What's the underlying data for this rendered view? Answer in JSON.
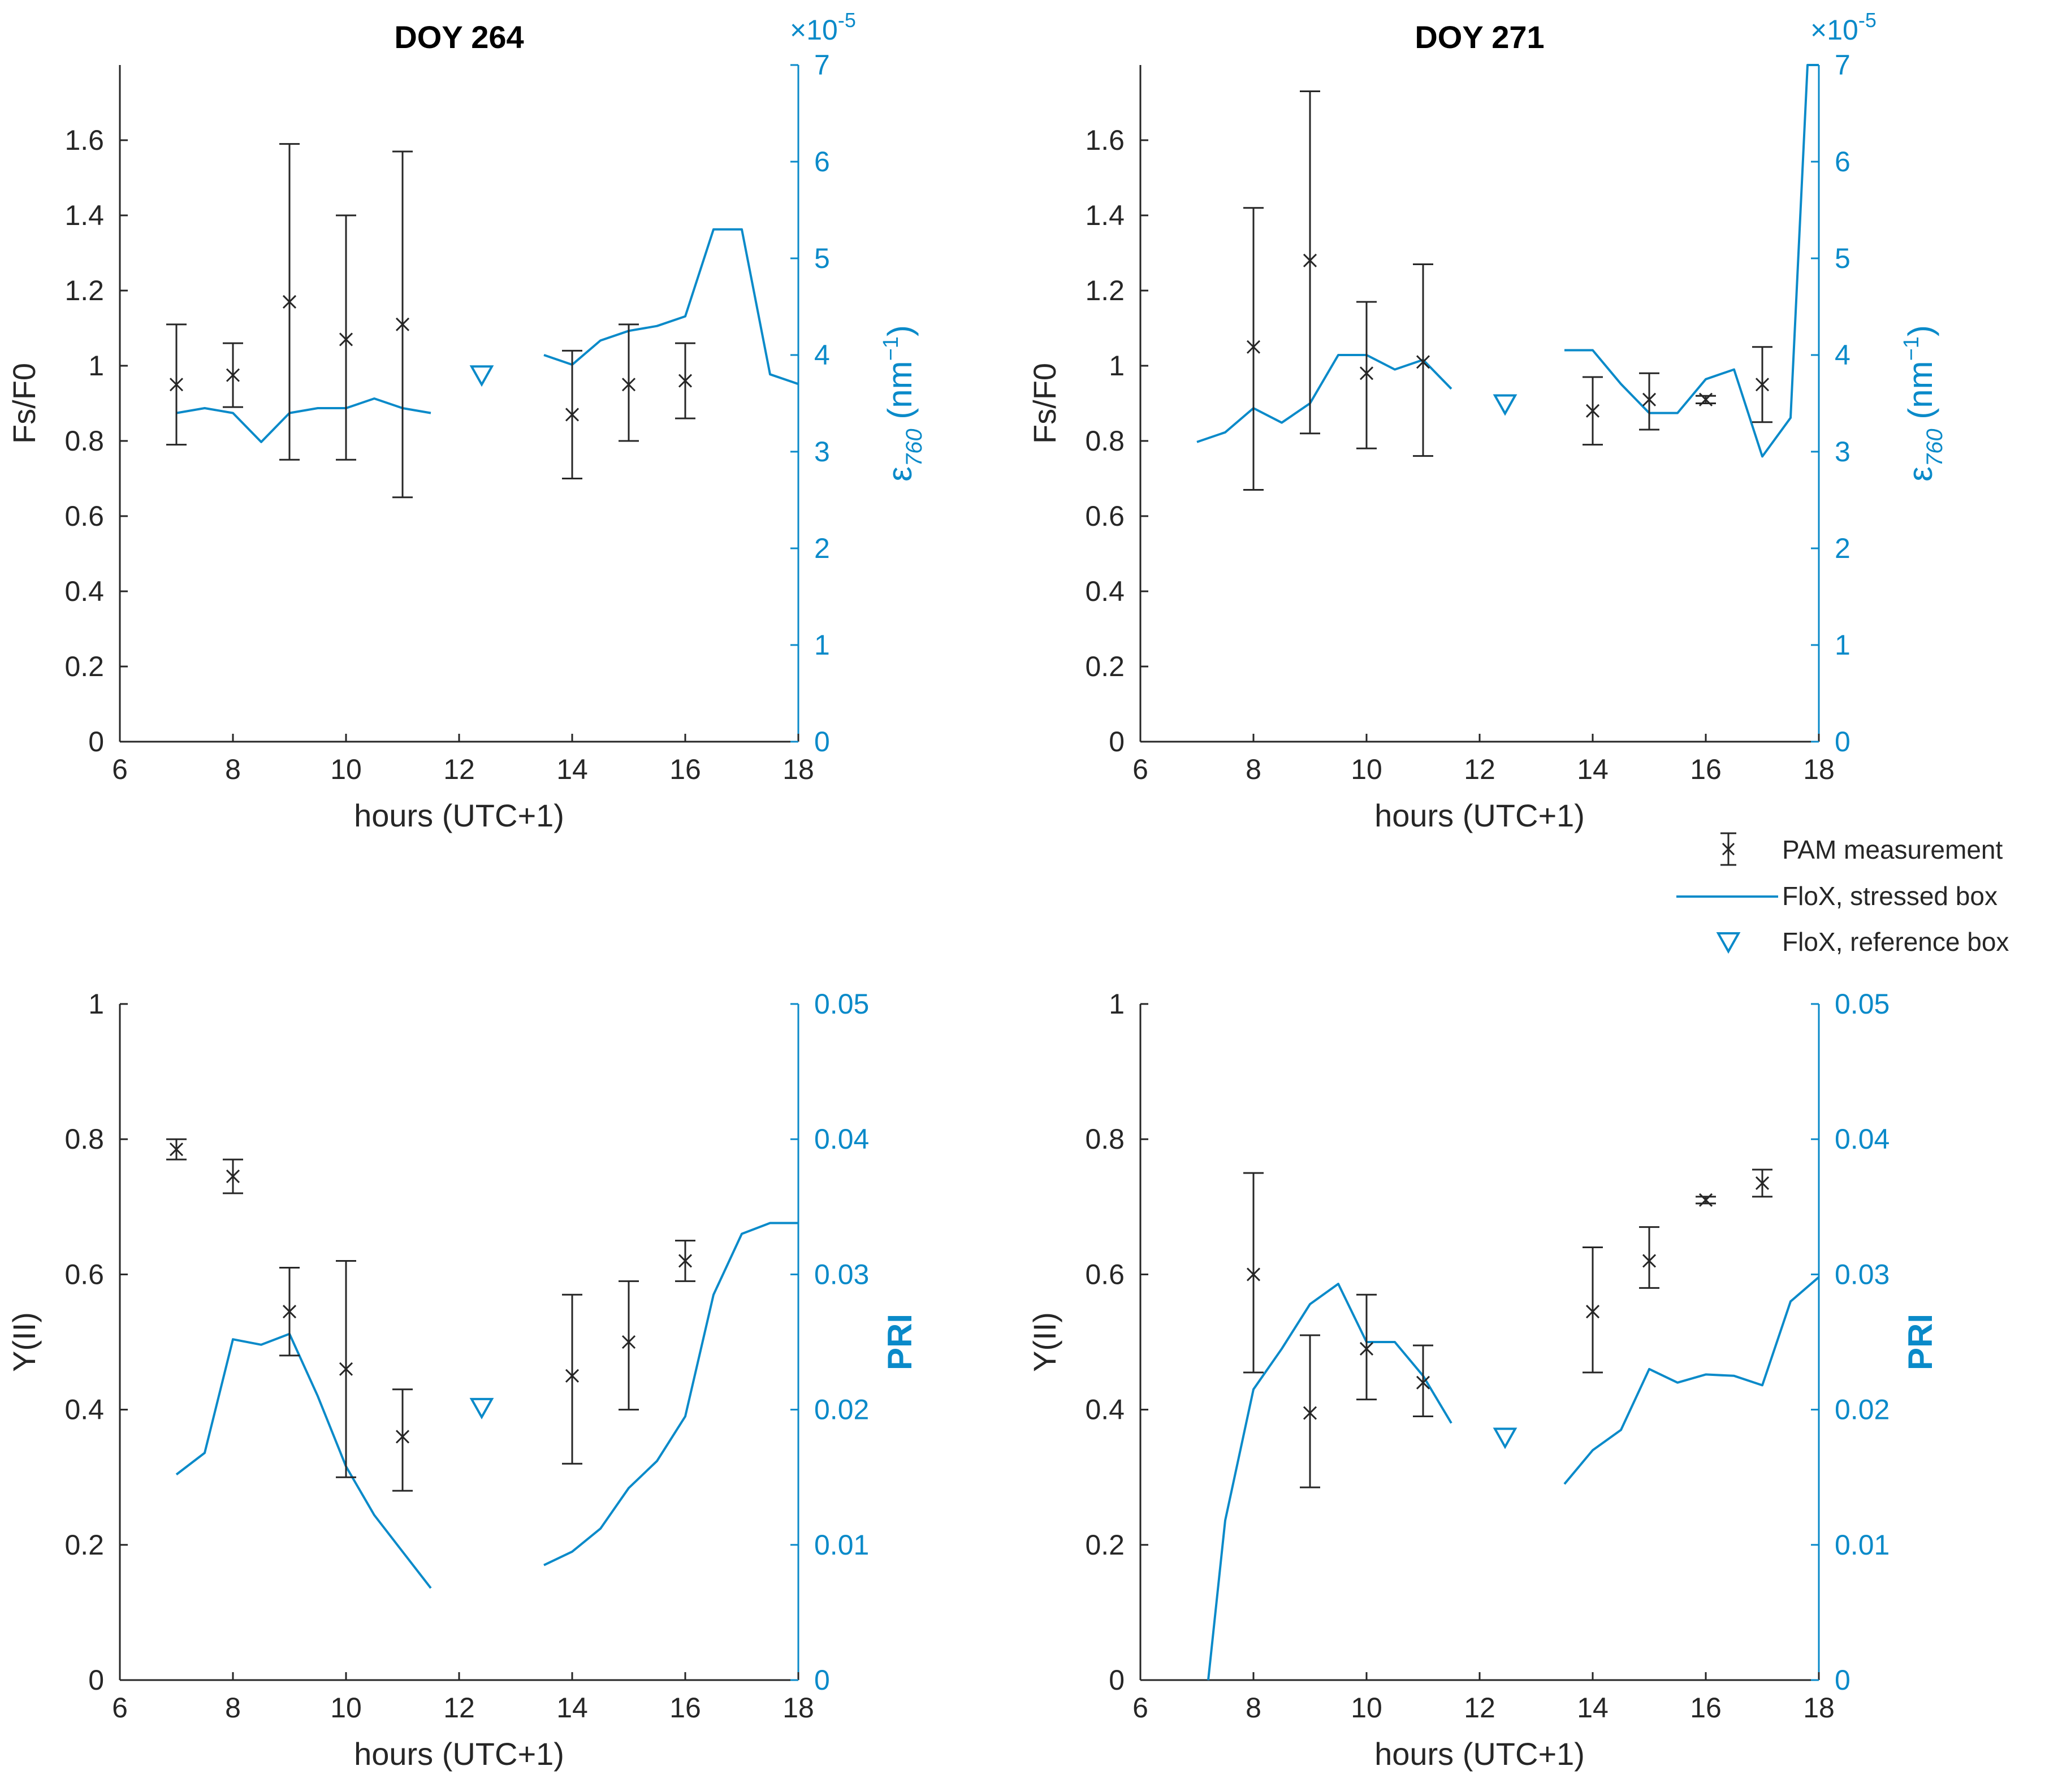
{
  "colors": {
    "black": "#262626",
    "blue": "#0a8ac9"
  },
  "legend": {
    "pam": "PAM measurement",
    "stressed": "FloX, stressed box",
    "reference": "FloX, reference box"
  },
  "chart_data": [
    {
      "type": "line",
      "title": "DOY 264",
      "xlabel": "hours (UTC+1)",
      "ylabel": "Fs/F0",
      "y2label_base": "ε",
      "y2label_sub": "760",
      "y2label_unit": "(nm",
      "y2label_sup": "−1",
      "y2label_close": ")",
      "xlim": [
        6,
        18
      ],
      "xticks": [
        6,
        8,
        10,
        12,
        14,
        16,
        18
      ],
      "ylim": [
        0,
        1.8
      ],
      "yticks": [
        0,
        0.2,
        0.4,
        0.6,
        0.8,
        1,
        1.2,
        1.4,
        1.6
      ],
      "y2lim": [
        0,
        7
      ],
      "y2ticks": [
        0,
        1,
        2,
        3,
        4,
        5,
        6,
        7
      ],
      "y2exp_base": "×10",
      "y2exp_pow": "-5",
      "pam": [
        {
          "x": 7,
          "y": 0.95,
          "lo": 0.79,
          "hi": 1.11
        },
        {
          "x": 8,
          "y": 0.975,
          "lo": 0.89,
          "hi": 1.06
        },
        {
          "x": 9,
          "y": 1.17,
          "lo": 0.75,
          "hi": 1.59
        },
        {
          "x": 10,
          "y": 1.07,
          "lo": 0.75,
          "hi": 1.4
        },
        {
          "x": 11,
          "y": 1.11,
          "lo": 0.65,
          "hi": 1.57
        },
        {
          "x": 14,
          "y": 0.87,
          "lo": 0.7,
          "hi": 1.04
        },
        {
          "x": 15,
          "y": 0.95,
          "lo": 0.8,
          "hi": 1.11
        },
        {
          "x": 16,
          "y": 0.96,
          "lo": 0.86,
          "hi": 1.06
        }
      ],
      "flox_segments": [
        [
          [
            7,
            3.4
          ],
          [
            7.5,
            3.45
          ],
          [
            8,
            3.4
          ],
          [
            8.5,
            3.1
          ],
          [
            9,
            3.4
          ],
          [
            9.5,
            3.45
          ],
          [
            10,
            3.45
          ],
          [
            10.5,
            3.55
          ],
          [
            11,
            3.45
          ],
          [
            11.5,
            3.4
          ]
        ],
        [
          [
            13.5,
            4.0
          ],
          [
            14,
            3.9
          ],
          [
            14.5,
            4.15
          ],
          [
            15,
            4.25
          ],
          [
            15.5,
            4.3
          ],
          [
            16,
            4.4
          ],
          [
            16.5,
            5.3
          ],
          [
            17,
            5.3
          ],
          [
            17.5,
            3.8
          ],
          [
            18,
            3.7
          ]
        ]
      ],
      "reference": {
        "x": 12.4,
        "y": 3.8
      }
    },
    {
      "type": "line",
      "title": "DOY 271",
      "xlabel": "hours (UTC+1)",
      "ylabel": "Fs/F0",
      "y2label_base": "ε",
      "y2label_sub": "760",
      "y2label_unit": "(nm",
      "y2label_sup": "−1",
      "y2label_close": ")",
      "xlim": [
        6,
        18
      ],
      "xticks": [
        6,
        8,
        10,
        12,
        14,
        16,
        18
      ],
      "ylim": [
        0,
        1.8
      ],
      "yticks": [
        0,
        0.2,
        0.4,
        0.6,
        0.8,
        1,
        1.2,
        1.4,
        1.6
      ],
      "y2lim": [
        0,
        7
      ],
      "y2ticks": [
        0,
        1,
        2,
        3,
        4,
        5,
        6,
        7
      ],
      "y2exp_base": "×10",
      "y2exp_pow": "-5",
      "pam": [
        {
          "x": 8,
          "y": 1.05,
          "lo": 0.67,
          "hi": 1.42
        },
        {
          "x": 9,
          "y": 1.28,
          "lo": 0.82,
          "hi": 1.73
        },
        {
          "x": 10,
          "y": 0.98,
          "lo": 0.78,
          "hi": 1.17
        },
        {
          "x": 11,
          "y": 1.01,
          "lo": 0.76,
          "hi": 1.27
        },
        {
          "x": 14,
          "y": 0.88,
          "lo": 0.79,
          "hi": 0.97
        },
        {
          "x": 15,
          "y": 0.91,
          "lo": 0.83,
          "hi": 0.98
        },
        {
          "x": 16,
          "y": 0.91,
          "lo": 0.9,
          "hi": 0.92
        },
        {
          "x": 17,
          "y": 0.95,
          "lo": 0.85,
          "hi": 1.05
        }
      ],
      "flox_segments": [
        [
          [
            7,
            3.1
          ],
          [
            7.5,
            3.2
          ],
          [
            8,
            3.45
          ],
          [
            8.5,
            3.3
          ],
          [
            9,
            3.5
          ],
          [
            9.5,
            4.0
          ],
          [
            10,
            4.0
          ],
          [
            10.5,
            3.85
          ],
          [
            11,
            3.95
          ],
          [
            11.5,
            3.65
          ]
        ],
        [
          [
            13.5,
            4.05
          ],
          [
            14,
            4.05
          ],
          [
            14.5,
            3.7
          ],
          [
            15,
            3.4
          ],
          [
            15.5,
            3.4
          ],
          [
            16,
            3.75
          ],
          [
            16.5,
            3.85
          ],
          [
            17,
            2.95
          ],
          [
            17.5,
            3.35
          ],
          [
            17.8,
            7.0
          ],
          [
            18,
            7.0
          ]
        ]
      ],
      "reference": {
        "x": 12.45,
        "y": 3.5
      }
    },
    {
      "type": "line",
      "title": "",
      "xlabel": "hours (UTC+1)",
      "ylabel": "Y(II)",
      "y2label": "PRI",
      "xlim": [
        6,
        18
      ],
      "xticks": [
        6,
        8,
        10,
        12,
        14,
        16,
        18
      ],
      "ylim": [
        0,
        1
      ],
      "yticks": [
        0,
        0.2,
        0.4,
        0.6,
        0.8,
        1
      ],
      "y2lim": [
        0,
        0.05
      ],
      "y2ticks": [
        "0",
        "0.01",
        "0.02",
        "0.03",
        "0.04",
        "0.05"
      ],
      "pam": [
        {
          "x": 7,
          "y": 0.785,
          "lo": 0.77,
          "hi": 0.8
        },
        {
          "x": 8,
          "y": 0.745,
          "lo": 0.72,
          "hi": 0.77
        },
        {
          "x": 9,
          "y": 0.545,
          "lo": 0.48,
          "hi": 0.61
        },
        {
          "x": 10,
          "y": 0.46,
          "lo": 0.3,
          "hi": 0.62
        },
        {
          "x": 11,
          "y": 0.36,
          "lo": 0.28,
          "hi": 0.43
        },
        {
          "x": 14,
          "y": 0.45,
          "lo": 0.32,
          "hi": 0.57
        },
        {
          "x": 15,
          "y": 0.5,
          "lo": 0.4,
          "hi": 0.59
        },
        {
          "x": 16,
          "y": 0.62,
          "lo": 0.59,
          "hi": 0.65
        }
      ],
      "flox_segments": [
        [
          [
            7,
            0.0152
          ],
          [
            7.5,
            0.0168
          ],
          [
            8,
            0.0252
          ],
          [
            8.5,
            0.0248
          ],
          [
            9,
            0.0256
          ],
          [
            9.5,
            0.021
          ],
          [
            10,
            0.0158
          ],
          [
            10.5,
            0.0122
          ],
          [
            11,
            0.0095
          ],
          [
            11.5,
            0.0068
          ]
        ],
        [
          [
            13.5,
            0.0085
          ],
          [
            14,
            0.0095
          ],
          [
            14.5,
            0.0112
          ],
          [
            15,
            0.0142
          ],
          [
            15.5,
            0.0162
          ],
          [
            16,
            0.0195
          ],
          [
            16.5,
            0.0285
          ],
          [
            17,
            0.033
          ],
          [
            17.5,
            0.0338
          ],
          [
            18,
            0.0338
          ]
        ]
      ],
      "reference": {
        "x": 12.4,
        "y": 0.0202
      }
    },
    {
      "type": "line",
      "title": "",
      "xlabel": "hours (UTC+1)",
      "ylabel": "Y(II)",
      "y2label": "PRI",
      "xlim": [
        6,
        18
      ],
      "xticks": [
        6,
        8,
        10,
        12,
        14,
        16,
        18
      ],
      "ylim": [
        0,
        1
      ],
      "yticks": [
        0,
        0.2,
        0.4,
        0.6,
        0.8,
        1
      ],
      "y2lim": [
        0,
        0.05
      ],
      "y2ticks": [
        "0",
        "0.01",
        "0.02",
        "0.03",
        "0.04",
        "0.05"
      ],
      "pam": [
        {
          "x": 8,
          "y": 0.6,
          "lo": 0.455,
          "hi": 0.75
        },
        {
          "x": 9,
          "y": 0.395,
          "lo": 0.285,
          "hi": 0.51
        },
        {
          "x": 10,
          "y": 0.49,
          "lo": 0.415,
          "hi": 0.57
        },
        {
          "x": 11,
          "y": 0.44,
          "lo": 0.39,
          "hi": 0.495
        },
        {
          "x": 14,
          "y": 0.545,
          "lo": 0.455,
          "hi": 0.64
        },
        {
          "x": 15,
          "y": 0.62,
          "lo": 0.58,
          "hi": 0.67
        },
        {
          "x": 16,
          "y": 0.71,
          "lo": 0.705,
          "hi": 0.715
        },
        {
          "x": 17,
          "y": 0.735,
          "lo": 0.715,
          "hi": 0.755
        }
      ],
      "flox_segments": [
        [
          [
            7.2,
            0.0
          ],
          [
            7.5,
            0.0118
          ],
          [
            8,
            0.0215
          ],
          [
            8.5,
            0.0245
          ],
          [
            9,
            0.0278
          ],
          [
            9.5,
            0.0293
          ],
          [
            10,
            0.025
          ],
          [
            10.5,
            0.025
          ],
          [
            11,
            0.0225
          ],
          [
            11.5,
            0.019
          ]
        ],
        [
          [
            13.5,
            0.0145
          ],
          [
            14,
            0.017
          ],
          [
            14.5,
            0.0185
          ],
          [
            15,
            0.023
          ],
          [
            15.5,
            0.022
          ],
          [
            16,
            0.0226
          ],
          [
            16.5,
            0.0225
          ],
          [
            17,
            0.0218
          ],
          [
            17.5,
            0.028
          ],
          [
            18,
            0.0298
          ]
        ]
      ],
      "reference": {
        "x": 12.45,
        "y": 0.018
      }
    }
  ]
}
